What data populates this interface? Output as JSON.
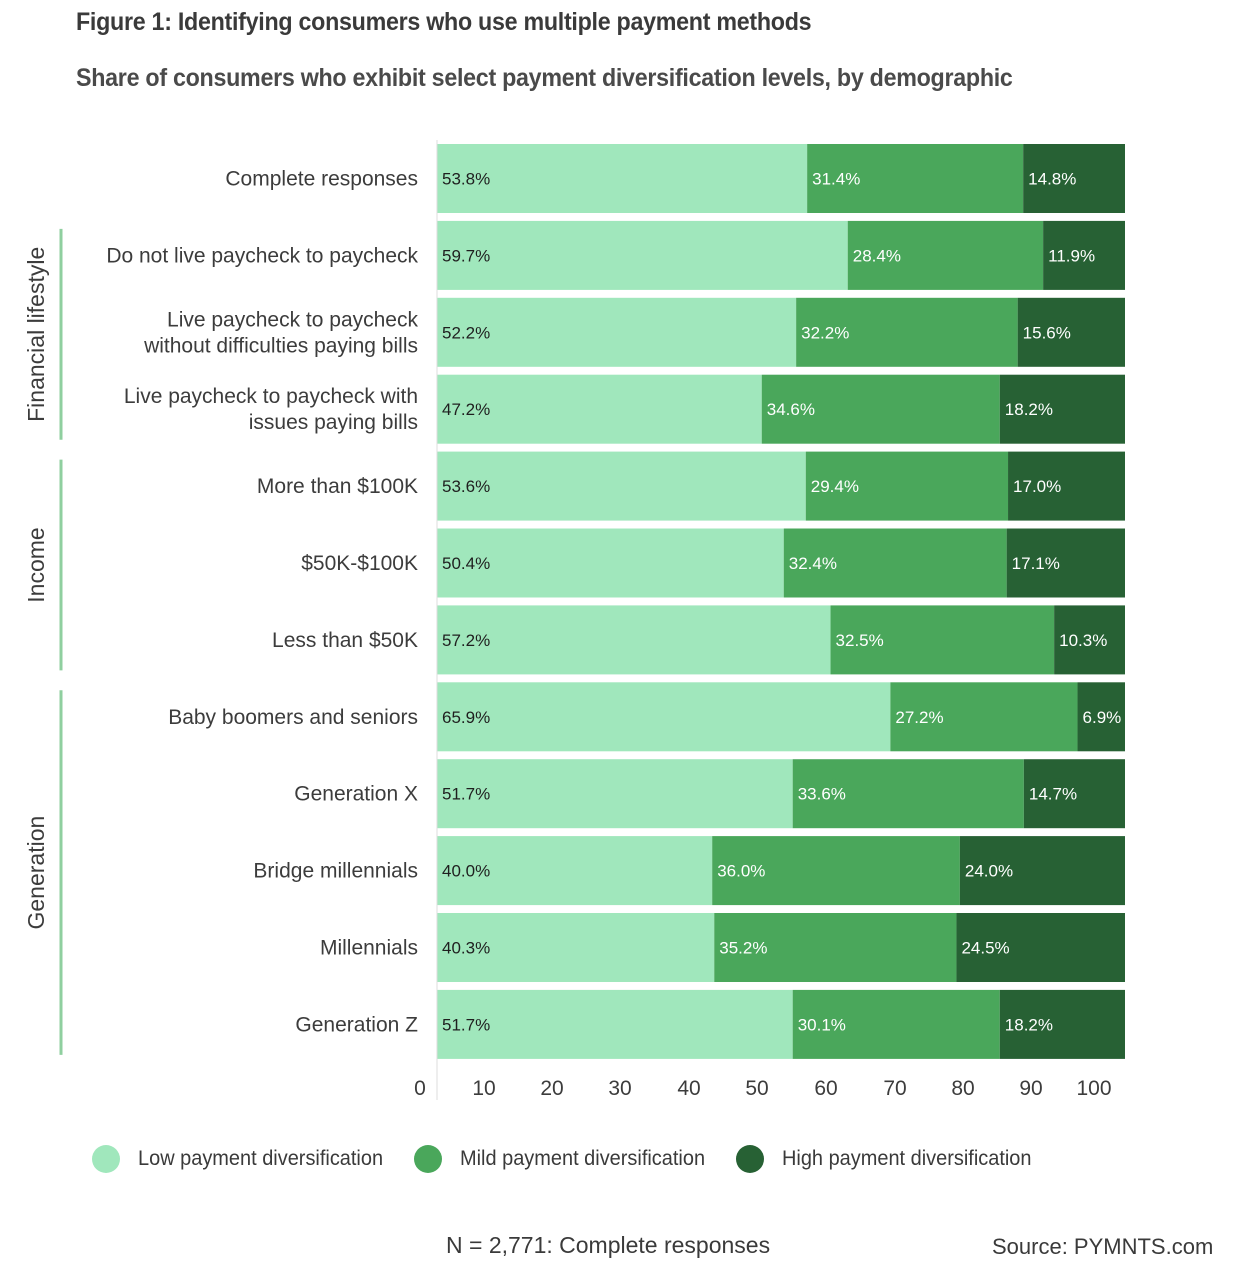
{
  "title": "Figure 1: Identifying consumers who use multiple payment methods",
  "subtitle": "Share of consumers who exhibit select payment diversification levels, by demographic",
  "colors": {
    "low": "#a0e7bc",
    "mild": "#4aa75b",
    "high": "#276134",
    "group_bar": "#8fcf9f",
    "low_text": "#1f1f1f",
    "other_text": "#ffffff"
  },
  "footnote": "N = 2,771: Complete responses",
  "source": "Source: PYMNTS.com",
  "chart_data": {
    "type": "bar",
    "orientation": "horizontal",
    "stacked": true,
    "title": "Figure 1: Identifying consumers who use multiple payment methods",
    "subtitle": "Share of consumers who exhibit select payment diversification levels, by demographic",
    "xlabel": "",
    "ylabel": "",
    "xlim": [
      0,
      100
    ],
    "xticks": [
      0,
      10,
      20,
      30,
      40,
      50,
      60,
      70,
      80,
      90,
      100
    ],
    "legend_position": "bottom",
    "grid": false,
    "groups": [
      {
        "name": "",
        "categories": [
          "Complete responses"
        ]
      },
      {
        "name": "Financial lifestyle",
        "categories": [
          "Do not live paycheck to paycheck",
          "Live paycheck to paycheck without difficulties paying bills",
          "Live paycheck to paycheck with issues paying bills"
        ]
      },
      {
        "name": "Income",
        "categories": [
          "More than $100K",
          "$50K-$100K",
          "Less than $50K"
        ]
      },
      {
        "name": "Generation",
        "categories": [
          "Baby boomers and seniors",
          "Generation X",
          "Bridge millennials",
          "Millennials",
          "Generation Z"
        ]
      }
    ],
    "categories": [
      [
        "Complete responses"
      ],
      [
        "Do not live paycheck to paycheck"
      ],
      [
        "Live paycheck to paycheck",
        "without difficulties paying bills"
      ],
      [
        "Live paycheck to paycheck with",
        "issues paying bills"
      ],
      [
        "More than $100K"
      ],
      [
        "$50K-$100K"
      ],
      [
        "Less than $50K"
      ],
      [
        "Baby boomers and seniors"
      ],
      [
        "Generation X"
      ],
      [
        "Bridge millennials"
      ],
      [
        "Millennials"
      ],
      [
        "Generation Z"
      ]
    ],
    "series": [
      {
        "name": "Low payment diversification",
        "key": "low",
        "values": [
          53.8,
          59.7,
          52.2,
          47.2,
          53.6,
          50.4,
          57.2,
          65.9,
          51.7,
          40.0,
          40.3,
          51.7
        ],
        "labels": [
          "53.8%",
          "59.7%",
          "52.2%",
          "47.2%",
          "53.6%",
          "50.4%",
          "57.2%",
          "65.9%",
          "51.7%",
          "40.0%",
          "40.3%",
          "51.7%"
        ]
      },
      {
        "name": "Mild payment diversification",
        "key": "mild",
        "values": [
          31.4,
          28.4,
          32.2,
          34.6,
          29.4,
          32.4,
          32.5,
          27.2,
          33.6,
          36.0,
          35.2,
          30.1
        ],
        "labels": [
          "31.4%",
          "28.4%",
          "32.2%",
          "34.6%",
          "29.4%",
          "32.4%",
          "32.5%",
          "27.2%",
          "33.6%",
          "36.0%",
          "35.2%",
          "30.1%"
        ]
      },
      {
        "name": "High payment diversification",
        "key": "high",
        "values": [
          14.8,
          11.9,
          15.6,
          18.2,
          17.0,
          17.1,
          10.3,
          6.9,
          14.7,
          24.0,
          24.5,
          18.2
        ],
        "labels": [
          "14.8%",
          "11.9%",
          "15.6%",
          "18.2%",
          "17.0%",
          "17.1%",
          "10.3%",
          "6.9%",
          "14.7%",
          "24.0%",
          "24.5%",
          "18.2%"
        ]
      }
    ]
  }
}
